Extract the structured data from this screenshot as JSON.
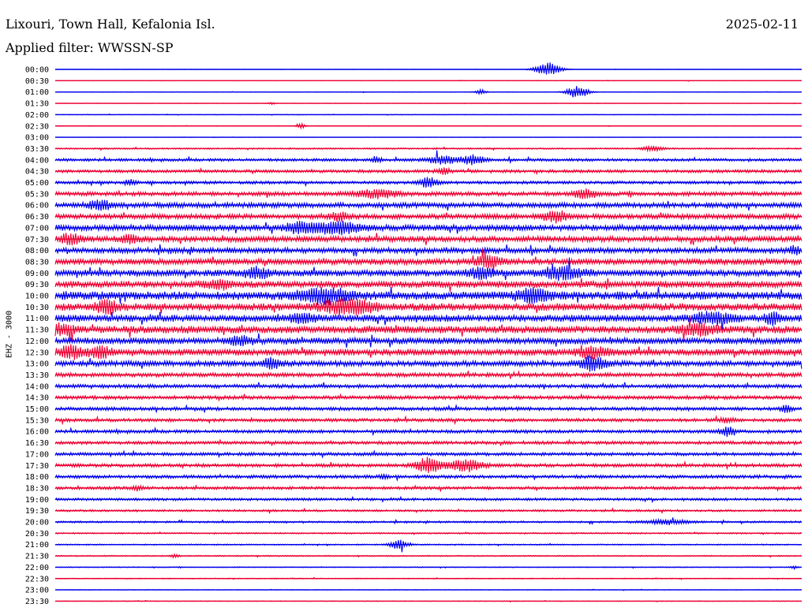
{
  "header": {
    "station": "Lixouri, Town Hall, Kefalonia Isl.",
    "date": "2025-02-11",
    "filter_label": "Applied filter:",
    "filter_value": "WWSSN-SP"
  },
  "chart_data": {
    "type": "line",
    "title": "",
    "ylabel": "EHZ - 3000",
    "xlabel": "",
    "grid": false,
    "colors": {
      "even_rows": "#0000ee",
      "odd_rows": "#ee0033"
    },
    "rows": [
      {
        "label": "00:00",
        "noise": 0.15,
        "events": [
          {
            "x": 0.66,
            "amp": 9,
            "width": 0.012
          }
        ]
      },
      {
        "label": "00:30",
        "noise": 0.2,
        "events": []
      },
      {
        "label": "01:00",
        "noise": 0.25,
        "events": [
          {
            "x": 0.57,
            "amp": 3,
            "width": 0.005
          },
          {
            "x": 0.7,
            "amp": 8,
            "width": 0.01
          }
        ]
      },
      {
        "label": "01:30",
        "noise": 0.2,
        "events": [
          {
            "x": 0.29,
            "amp": 1.2,
            "width": 0.004
          }
        ]
      },
      {
        "label": "02:00",
        "noise": 0.25,
        "events": []
      },
      {
        "label": "02:30",
        "noise": 0.25,
        "events": [
          {
            "x": 0.33,
            "amp": 3,
            "width": 0.004
          }
        ]
      },
      {
        "label": "03:00",
        "noise": 0.15,
        "events": []
      },
      {
        "label": "03:30",
        "noise": 0.6,
        "events": [
          {
            "x": 0.8,
            "amp": 3,
            "width": 0.01
          }
        ]
      },
      {
        "label": "04:00",
        "noise": 1.2,
        "events": [
          {
            "x": 0.43,
            "amp": 4,
            "width": 0.005
          },
          {
            "x": 0.52,
            "amp": 5,
            "width": 0.015
          },
          {
            "x": 0.56,
            "amp": 6,
            "width": 0.01
          }
        ]
      },
      {
        "label": "04:30",
        "noise": 1.3,
        "events": [
          {
            "x": 0.52,
            "amp": 4,
            "width": 0.006
          }
        ]
      },
      {
        "label": "05:00",
        "noise": 1.3,
        "events": [
          {
            "x": 0.5,
            "amp": 7,
            "width": 0.008
          },
          {
            "x": 0.1,
            "amp": 3,
            "width": 0.006
          }
        ]
      },
      {
        "label": "05:30",
        "noise": 1.8,
        "events": [
          {
            "x": 0.43,
            "amp": 5,
            "width": 0.02
          },
          {
            "x": 0.71,
            "amp": 6,
            "width": 0.01
          }
        ]
      },
      {
        "label": "06:00",
        "noise": 2.2,
        "events": [
          {
            "x": 0.06,
            "amp": 6,
            "width": 0.01
          }
        ]
      },
      {
        "label": "06:30",
        "noise": 2.2,
        "events": [
          {
            "x": 0.38,
            "amp": 5,
            "width": 0.008
          },
          {
            "x": 0.67,
            "amp": 6,
            "width": 0.012
          }
        ]
      },
      {
        "label": "07:00",
        "noise": 2.6,
        "events": [
          {
            "x": 0.33,
            "amp": 6,
            "width": 0.015
          },
          {
            "x": 0.38,
            "amp": 7,
            "width": 0.02
          }
        ]
      },
      {
        "label": "07:30",
        "noise": 2.5,
        "events": [
          {
            "x": 0.02,
            "amp": 6,
            "width": 0.01
          },
          {
            "x": 0.1,
            "amp": 4,
            "width": 0.01
          }
        ]
      },
      {
        "label": "08:00",
        "noise": 2.4,
        "events": [
          {
            "x": 0.99,
            "amp": 5,
            "width": 0.005
          }
        ]
      },
      {
        "label": "08:30",
        "noise": 2.6,
        "events": [
          {
            "x": 0.58,
            "amp": 7,
            "width": 0.012
          }
        ]
      },
      {
        "label": "09:00",
        "noise": 2.8,
        "events": [
          {
            "x": 0.27,
            "amp": 6,
            "width": 0.012
          },
          {
            "x": 0.57,
            "amp": 6,
            "width": 0.012
          },
          {
            "x": 0.68,
            "amp": 7,
            "width": 0.02
          }
        ]
      },
      {
        "label": "09:30",
        "noise": 3.0,
        "events": [
          {
            "x": 0.22,
            "amp": 5,
            "width": 0.01
          }
        ]
      },
      {
        "label": "10:00",
        "noise": 3.6,
        "events": [
          {
            "x": 0.36,
            "amp": 8,
            "width": 0.025
          },
          {
            "x": 0.64,
            "amp": 8,
            "width": 0.015
          }
        ]
      },
      {
        "label": "10:30",
        "noise": 3.2,
        "events": [
          {
            "x": 0.07,
            "amp": 8,
            "width": 0.01
          },
          {
            "x": 0.39,
            "amp": 9,
            "width": 0.025
          }
        ]
      },
      {
        "label": "11:00",
        "noise": 3.0,
        "events": [
          {
            "x": 0.33,
            "amp": 5,
            "width": 0.012
          },
          {
            "x": 0.88,
            "amp": 6,
            "width": 0.02
          },
          {
            "x": 0.96,
            "amp": 8,
            "width": 0.006
          }
        ]
      },
      {
        "label": "11:30",
        "noise": 3.2,
        "events": [
          {
            "x": 0.01,
            "amp": 7,
            "width": 0.01
          },
          {
            "x": 0.86,
            "amp": 7,
            "width": 0.015
          }
        ]
      },
      {
        "label": "12:00",
        "noise": 2.8,
        "events": [
          {
            "x": 0.25,
            "amp": 5,
            "width": 0.01
          }
        ]
      },
      {
        "label": "12:30",
        "noise": 2.8,
        "events": [
          {
            "x": 0.02,
            "amp": 8,
            "width": 0.01
          },
          {
            "x": 0.06,
            "amp": 7,
            "width": 0.01
          },
          {
            "x": 0.72,
            "amp": 6,
            "width": 0.015
          }
        ]
      },
      {
        "label": "13:00",
        "noise": 2.4,
        "events": [
          {
            "x": 0.29,
            "amp": 6,
            "width": 0.008
          },
          {
            "x": 0.72,
            "amp": 8,
            "width": 0.012
          }
        ]
      },
      {
        "label": "13:30",
        "noise": 1.8,
        "events": []
      },
      {
        "label": "14:00",
        "noise": 1.6,
        "events": []
      },
      {
        "label": "14:30",
        "noise": 1.6,
        "events": []
      },
      {
        "label": "15:00",
        "noise": 1.5,
        "events": [
          {
            "x": 0.98,
            "amp": 5,
            "width": 0.005
          }
        ]
      },
      {
        "label": "15:30",
        "noise": 1.4,
        "events": [
          {
            "x": 0.9,
            "amp": 3,
            "width": 0.008
          }
        ]
      },
      {
        "label": "16:00",
        "noise": 1.4,
        "events": [
          {
            "x": 0.9,
            "amp": 6,
            "width": 0.006
          }
        ]
      },
      {
        "label": "16:30",
        "noise": 1.4,
        "events": []
      },
      {
        "label": "17:00",
        "noise": 1.4,
        "events": []
      },
      {
        "label": "17:30",
        "noise": 1.5,
        "events": [
          {
            "x": 0.5,
            "amp": 10,
            "width": 0.012
          },
          {
            "x": 0.55,
            "amp": 8,
            "width": 0.015
          }
        ]
      },
      {
        "label": "18:00",
        "noise": 1.4,
        "events": [
          {
            "x": 0.44,
            "amp": 3,
            "width": 0.004
          }
        ]
      },
      {
        "label": "18:30",
        "noise": 1.3,
        "events": [
          {
            "x": 0.11,
            "amp": 3,
            "width": 0.005
          }
        ]
      },
      {
        "label": "19:00",
        "noise": 1.1,
        "events": []
      },
      {
        "label": "19:30",
        "noise": 0.9,
        "events": []
      },
      {
        "label": "20:00",
        "noise": 0.8,
        "events": [
          {
            "x": 0.82,
            "amp": 3,
            "width": 0.02
          }
        ]
      },
      {
        "label": "20:30",
        "noise": 0.6,
        "events": []
      },
      {
        "label": "21:00",
        "noise": 0.5,
        "events": [
          {
            "x": 0.46,
            "amp": 6,
            "width": 0.008
          }
        ]
      },
      {
        "label": "21:30",
        "noise": 0.5,
        "events": [
          {
            "x": 0.16,
            "amp": 2,
            "width": 0.004
          }
        ]
      },
      {
        "label": "22:00",
        "noise": 0.4,
        "events": [
          {
            "x": 0.99,
            "amp": 2,
            "width": 0.003
          }
        ]
      },
      {
        "label": "22:30",
        "noise": 0.4,
        "events": []
      },
      {
        "label": "23:00",
        "noise": 0.3,
        "events": []
      },
      {
        "label": "23:30",
        "noise": 0.3,
        "events": []
      }
    ]
  }
}
